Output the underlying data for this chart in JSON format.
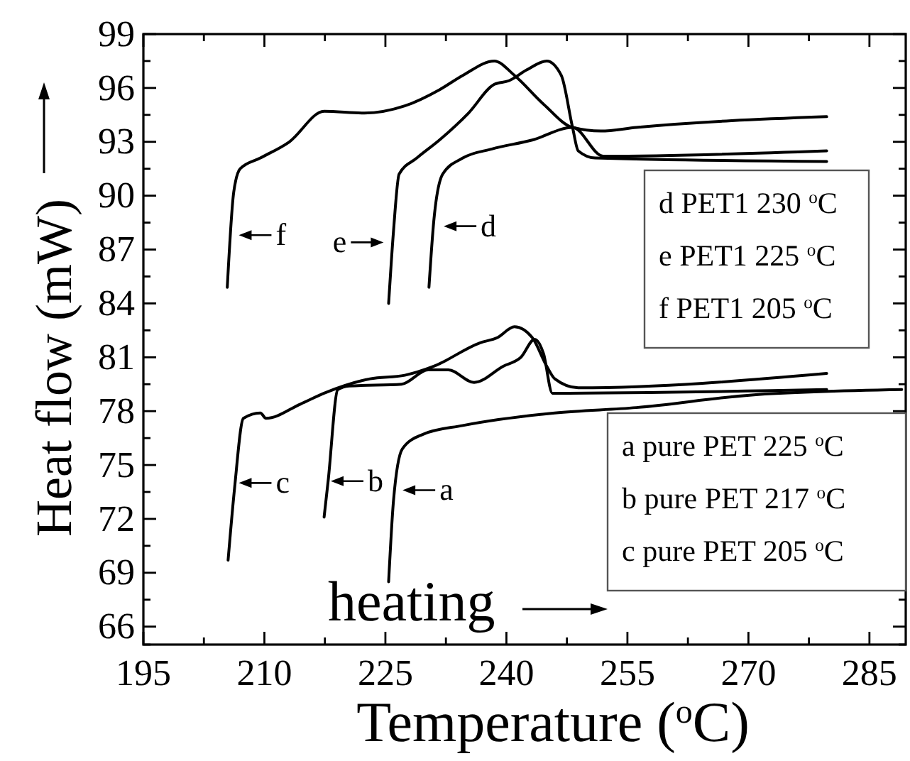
{
  "chart_data": {
    "type": "line",
    "xlabel": "Temperature ($^{o}$C)",
    "ylabel": "Heat flow  (mW)",
    "xlim": [
      195,
      289.5
    ],
    "ylim": [
      65,
      99
    ],
    "xticks": [
      195,
      {
        "value": 202.5,
        "label": null
      },
      210,
      {
        "value": 217.5,
        "label": null
      },
      225,
      {
        "value": 232.5,
        "label": null
      },
      240,
      {
        "value": 247.5,
        "label": null
      },
      255,
      {
        "value": 262.5,
        "label": null
      },
      270,
      {
        "value": 277.5,
        "label": null
      },
      285
    ],
    "yticks": [
      {
        "value": 65,
        "label": null
      },
      66,
      {
        "value": 67.5,
        "label": null
      },
      69,
      {
        "value": 70.5,
        "label": null
      },
      72,
      {
        "value": 73.5,
        "label": null
      },
      75,
      {
        "value": 76.5,
        "label": null
      },
      78,
      {
        "value": 79.5,
        "label": null
      },
      81,
      {
        "value": 82.5,
        "label": null
      },
      84,
      {
        "value": 85.5,
        "label": null
      },
      87,
      {
        "value": 88.5,
        "label": null
      },
      90,
      {
        "value": 91.5,
        "label": null
      },
      93,
      {
        "value": 94.5,
        "label": null
      },
      96,
      {
        "value": 97.5,
        "label": null
      },
      99
    ],
    "grid": false,
    "marker": "none",
    "line_style": "solid",
    "series": [
      {
        "color": "#000000",
        "x": [
          205.4,
          206.2,
          207.0,
          209.5,
          213.1,
          217.4,
          222.4,
          227.4,
          231.7,
          234.6,
          238.5,
          241.0,
          244.6,
          248.2,
          251.7,
          256.1,
          279.7
        ],
        "values": [
          84.9,
          90.2,
          91.5,
          92.1,
          93.0,
          94.7,
          94.6,
          95.0,
          95.9,
          96.7,
          97.5,
          96.7,
          95.1,
          93.8,
          93.6,
          93.8,
          94.4
        ]
      },
      {
        "color": "#000000",
        "x": [
          225.4,
          226.0,
          226.7,
          228.9,
          231.7,
          235.3,
          238.5,
          240.3,
          242.5,
          245.0,
          246.8,
          248.2,
          248.9,
          251.0,
          279.7
        ],
        "values": [
          84.0,
          88.0,
          91.2,
          92.1,
          93.1,
          94.6,
          96.2,
          96.4,
          97.0,
          97.5,
          96.7,
          93.8,
          92.5,
          92.1,
          91.9
        ]
      },
      {
        "color": "#000000",
        "x": [
          230.4,
          231.0,
          232.1,
          234.6,
          238.2,
          243.2,
          248.2,
          252.0,
          279.7
        ],
        "values": [
          84.9,
          88.6,
          91.2,
          92.1,
          92.6,
          93.1,
          93.8,
          92.2,
          92.5
        ]
      },
      {
        "color": "#000000",
        "x": [
          205.5,
          206.3,
          207.4,
          209.5,
          210.2,
          214.5,
          217.4,
          223.1,
          227.4,
          231.0,
          236.7,
          238.9,
          241.0,
          243.2,
          245.0,
          246.0,
          248.9,
          279.7
        ],
        "values": [
          69.7,
          73.7,
          77.6,
          77.9,
          77.6,
          78.4,
          79.0,
          79.8,
          80.0,
          80.5,
          81.8,
          82.1,
          82.7,
          82.1,
          80.5,
          79.8,
          79.3,
          80.1
        ]
      },
      {
        "color": "#000000",
        "x": [
          217.4,
          217.9,
          219.1,
          220.5,
          227.0,
          230.3,
          232.8,
          236.0,
          239.6,
          241.8,
          243.5,
          244.6,
          245.7,
          279.7
        ],
        "values": [
          72.1,
          74.1,
          79.2,
          79.4,
          79.5,
          80.3,
          80.3,
          79.6,
          80.5,
          81.0,
          82.0,
          81.2,
          79.0,
          79.2
        ]
      },
      {
        "color": "#000000",
        "x": [
          225.4,
          226.0,
          227.1,
          229.6,
          234.6,
          246.0,
          256.1,
          270.4,
          289.0
        ],
        "values": [
          68.5,
          73.0,
          75.9,
          76.7,
          77.2,
          77.9,
          78.2,
          78.9,
          79.2
        ]
      }
    ],
    "annotations": [
      "d PET1 230 $^{o}$C",
      "e PET1 225 $^{o}$C",
      "f PET1 205 $^{o}$C",
      "a  pure PET 225 $^{o}$C",
      "b  pure PET 217 $^{o}$C",
      "c  pure PET 205 $^{o}$C",
      "heating",
      {
        "text": "f",
        "x": 206.3,
        "y": 87.8
      },
      {
        "text": "e",
        "x": 225.3,
        "y": 87.4
      },
      {
        "text": "d",
        "x": 231.7,
        "y": 88.3
      },
      {
        "text": "c",
        "x": 206.3,
        "y": 74.0
      },
      {
        "text": "b",
        "x": 217.7,
        "y": 74.1
      },
      {
        "text": "a",
        "x": 226.6,
        "y": 73.6
      }
    ]
  }
}
